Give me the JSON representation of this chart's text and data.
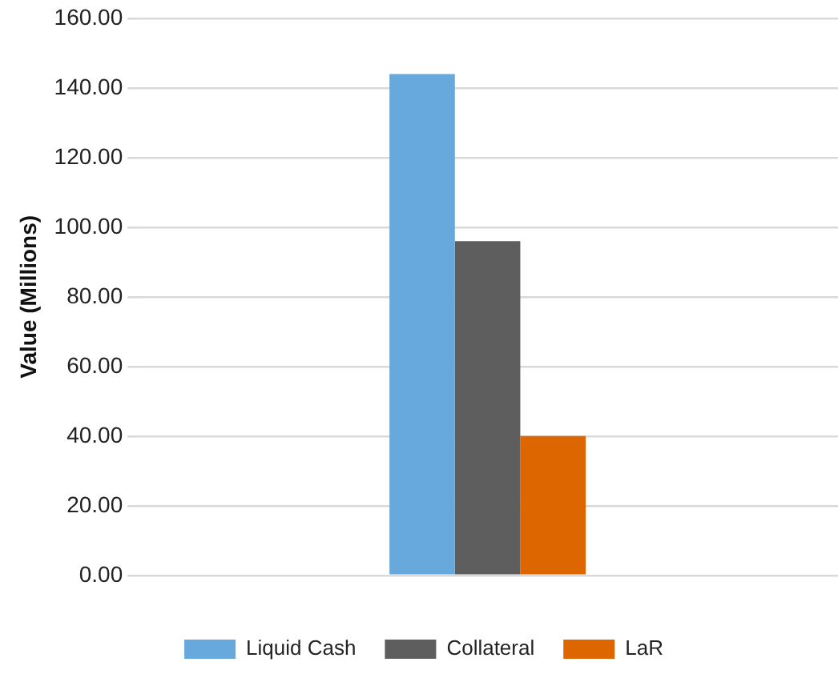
{
  "chart_data": {
    "type": "bar",
    "ylabel": "Value (Millions)",
    "categories": [
      null
    ],
    "series": [
      {
        "name": "Liquid Cash",
        "color": "#67a9dc",
        "values": [
          144
        ]
      },
      {
        "name": "Collateral",
        "color": "#5e5e5e",
        "values": [
          96
        ]
      },
      {
        "name": "LaR",
        "color": "#dd6600",
        "values": [
          40
        ]
      }
    ],
    "ylim": [
      0,
      160
    ],
    "yticks": [
      {
        "value": 0,
        "label": "0.00"
      },
      {
        "value": 20,
        "label": "20.00"
      },
      {
        "value": 40,
        "label": "40.00"
      },
      {
        "value": 60,
        "label": "60.00"
      },
      {
        "value": 80,
        "label": "80.00"
      },
      {
        "value": 100,
        "label": "100.00"
      },
      {
        "value": 120,
        "label": "120.00"
      },
      {
        "value": 140,
        "label": "140.00"
      },
      {
        "value": 160,
        "label": "160.00"
      }
    ],
    "grid": "y",
    "legend": "bottom"
  }
}
